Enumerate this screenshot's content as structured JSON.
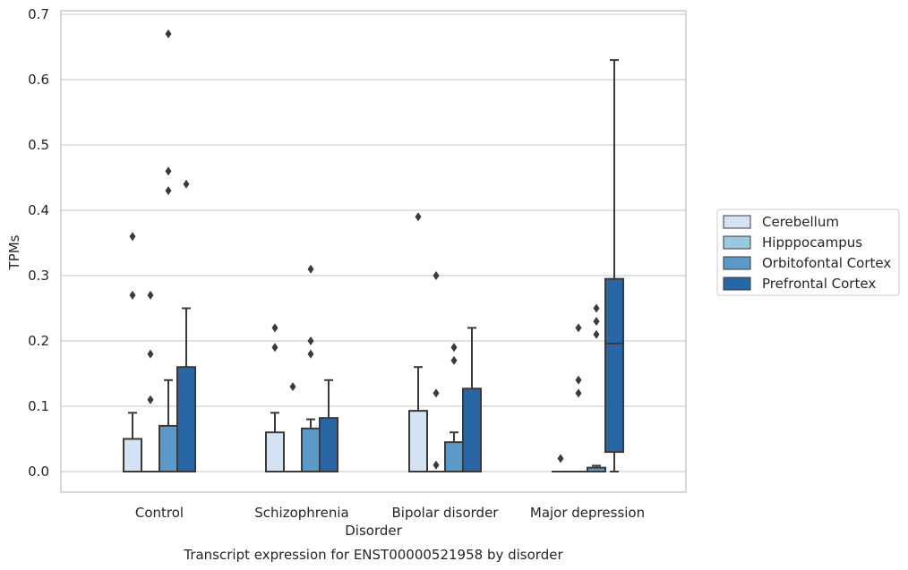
{
  "chart_data": {
    "type": "box",
    "caption": "Transcript expression for ENST00000521958 by disorder",
    "xlabel": "Disorder",
    "ylabel": "TPMs",
    "ylim": [
      -0.03,
      0.705
    ],
    "yticks": [
      "0.0",
      "0.1",
      "0.2",
      "0.3",
      "0.4",
      "0.5",
      "0.6",
      "0.7"
    ],
    "ytick_values": [
      0,
      0.1,
      0.2,
      0.3,
      0.4,
      0.5,
      0.6,
      0.7
    ],
    "grid": true,
    "legend_position": "right",
    "categories": [
      "Control",
      "Schizophrenia",
      "Bipolar disorder",
      "Major depression"
    ],
    "series": [
      {
        "name": "Cerebellum",
        "color": "#d3e3f3",
        "boxes": [
          {
            "q1": 0,
            "median": 0,
            "q3": 0.05,
            "whisker_low": 0,
            "whisker_high": 0.09,
            "outliers": [
              0.27,
              0.36
            ]
          },
          {
            "q1": 0,
            "median": 0,
            "q3": 0.06,
            "whisker_low": 0,
            "whisker_high": 0.09,
            "outliers": [
              0.19,
              0.22
            ]
          },
          {
            "q1": 0,
            "median": 0,
            "q3": 0.093,
            "whisker_low": 0,
            "whisker_high": 0.16,
            "outliers": [
              0.39
            ]
          },
          {
            "q1": 0,
            "median": 0,
            "q3": 0,
            "whisker_low": 0,
            "whisker_high": 0,
            "outliers": [
              0.02
            ]
          }
        ]
      },
      {
        "name": "Hipppocampus",
        "color": "#9ac8e0",
        "boxes": [
          {
            "q1": 0,
            "median": 0,
            "q3": 0,
            "whisker_low": 0,
            "whisker_high": 0,
            "outliers": [
              0.11,
              0.18,
              0.27
            ]
          },
          {
            "q1": 0,
            "median": 0,
            "q3": 0,
            "whisker_low": 0,
            "whisker_high": 0,
            "outliers": [
              0.13
            ]
          },
          {
            "q1": 0,
            "median": 0,
            "q3": 0,
            "whisker_low": 0,
            "whisker_high": 0,
            "outliers": [
              0.01,
              0.12,
              0.3
            ]
          },
          {
            "q1": 0,
            "median": 0,
            "q3": 0,
            "whisker_low": 0,
            "whisker_high": 0,
            "outliers": [
              0.12,
              0.14,
              0.22
            ]
          }
        ]
      },
      {
        "name": "Orbitofontal Cortex",
        "color": "#5b9ac8",
        "boxes": [
          {
            "q1": 0,
            "median": 0,
            "q3": 0.07,
            "whisker_low": 0,
            "whisker_high": 0.14,
            "outliers": [
              0.43,
              0.46,
              0.67
            ]
          },
          {
            "q1": 0,
            "median": 0,
            "q3": 0.066,
            "whisker_low": 0,
            "whisker_high": 0.08,
            "outliers": [
              0.18,
              0.2,
              0.31
            ]
          },
          {
            "q1": 0,
            "median": 0,
            "q3": 0.045,
            "whisker_low": 0,
            "whisker_high": 0.06,
            "outliers": [
              0.17,
              0.19
            ]
          },
          {
            "q1": 0,
            "median": 0,
            "q3": 0.006,
            "whisker_low": 0,
            "whisker_high": 0.009,
            "outliers": [
              0.21,
              0.23,
              0.25
            ]
          }
        ]
      },
      {
        "name": "Prefrontal Cortex",
        "color": "#2866a5",
        "boxes": [
          {
            "q1": 0,
            "median": 0,
            "q3": 0.16,
            "whisker_low": 0,
            "whisker_high": 0.25,
            "outliers": [
              0.44
            ]
          },
          {
            "q1": 0,
            "median": 0,
            "q3": 0.082,
            "whisker_low": 0,
            "whisker_high": 0.14,
            "outliers": []
          },
          {
            "q1": 0,
            "median": 0,
            "q3": 0.127,
            "whisker_low": 0,
            "whisker_high": 0.22,
            "outliers": []
          },
          {
            "q1": 0.03,
            "median": 0.196,
            "q3": 0.295,
            "whisker_low": 0,
            "whisker_high": 0.63,
            "outliers": []
          }
        ]
      }
    ]
  }
}
